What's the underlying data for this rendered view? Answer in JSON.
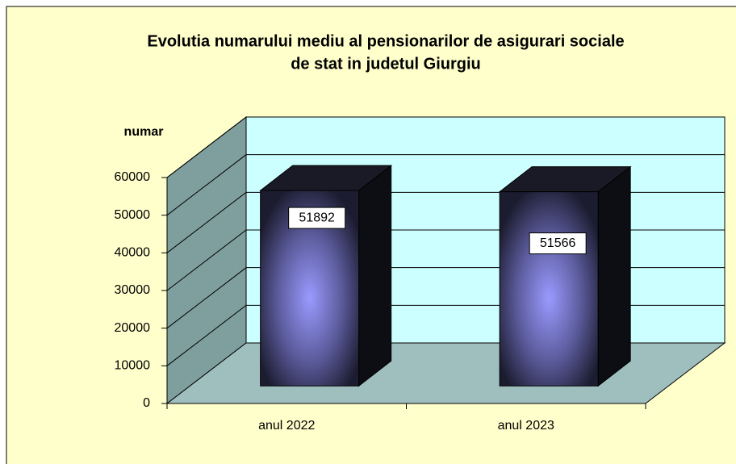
{
  "chart_data": {
    "type": "bar3d",
    "title": [
      "Evolutia numarului mediu al pensionarilor de asigurari sociale",
      "de stat in judetul Giurgiu"
    ],
    "y_label": "numar",
    "categories": [
      "anul 2022",
      "anul 2023"
    ],
    "values": [
      51892,
      51566
    ],
    "ylim": [
      0,
      60000
    ],
    "yticks": [
      0,
      10000,
      20000,
      30000,
      40000,
      50000,
      60000
    ],
    "grid": true,
    "color": "#9999ff"
  }
}
